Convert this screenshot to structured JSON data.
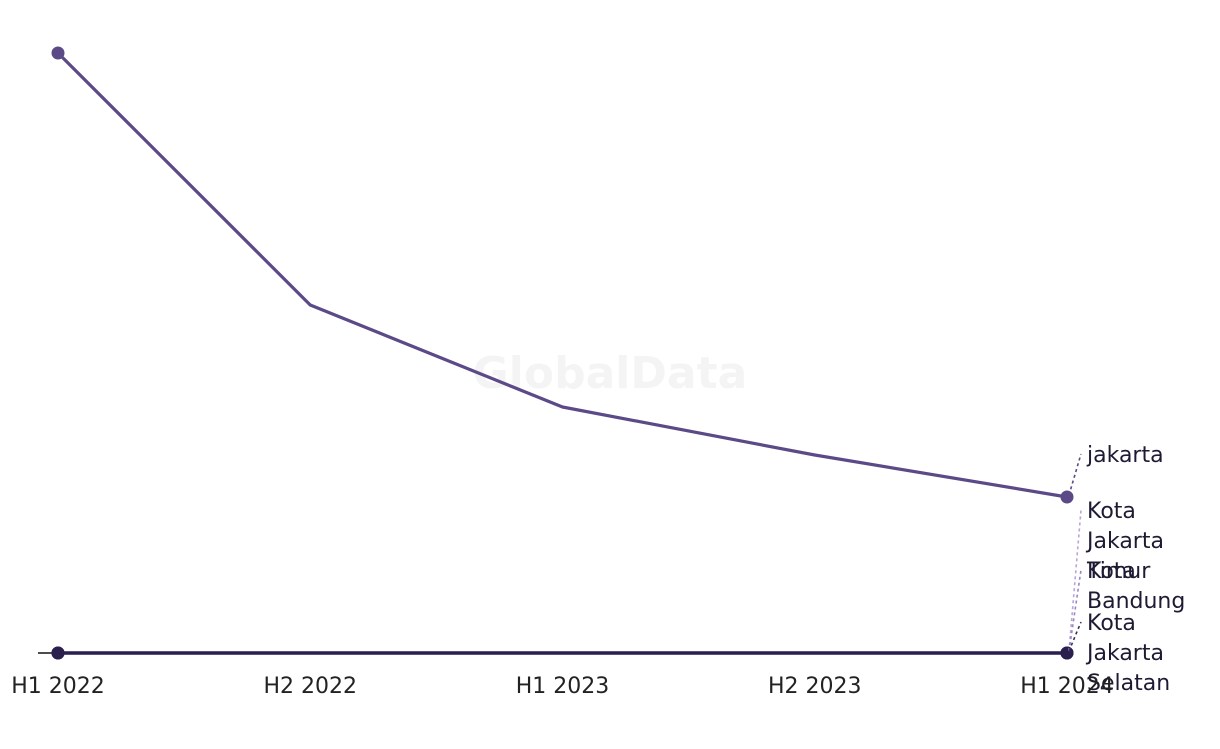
{
  "watermark": "GlobalData",
  "colors": {
    "baseline": "#111111",
    "series_palette": [
      "#5b4a87",
      "#b7a6d6",
      "#9b87c6",
      "#3a2e5f",
      "#2a1f4d"
    ]
  },
  "chart_data": {
    "type": "line",
    "title": "",
    "xlabel": "",
    "ylabel": "",
    "grid": false,
    "legend": "inline labels at line ends",
    "x": [
      "H1 2022",
      "H2 2022",
      "H1 2023",
      "H2 2023",
      "H1 2024"
    ],
    "ylim": [
      0,
      100
    ],
    "series": [
      {
        "name": "jakarta",
        "color": "#5b4a87",
        "values": [
          100,
          58,
          41,
          33,
          26
        ],
        "label_lines": [
          "jakarta"
        ]
      },
      {
        "name": "Kota Jakarta Timur",
        "color": "#b7a6d6",
        "values": [
          0,
          0,
          0,
          0,
          0
        ],
        "label_lines": [
          "Kota",
          "Jakarta",
          "Timur"
        ]
      },
      {
        "name": "Kota Bandung",
        "color": "#9b87c6",
        "values": [
          0,
          0,
          0,
          0,
          0
        ],
        "label_lines": [
          "Kota",
          "Bandung"
        ]
      },
      {
        "name": "Kota Jakarta Selatan",
        "color": "#3a2e5f",
        "values": [
          0,
          0,
          0,
          0,
          0
        ],
        "label_lines": [
          "Kota",
          "Jakarta",
          "Selatan"
        ]
      },
      {
        "name": "Kota Bandung",
        "color": "#2a1f4d",
        "values": [
          0,
          0,
          0,
          0,
          0
        ],
        "label_lines": []
      }
    ]
  }
}
